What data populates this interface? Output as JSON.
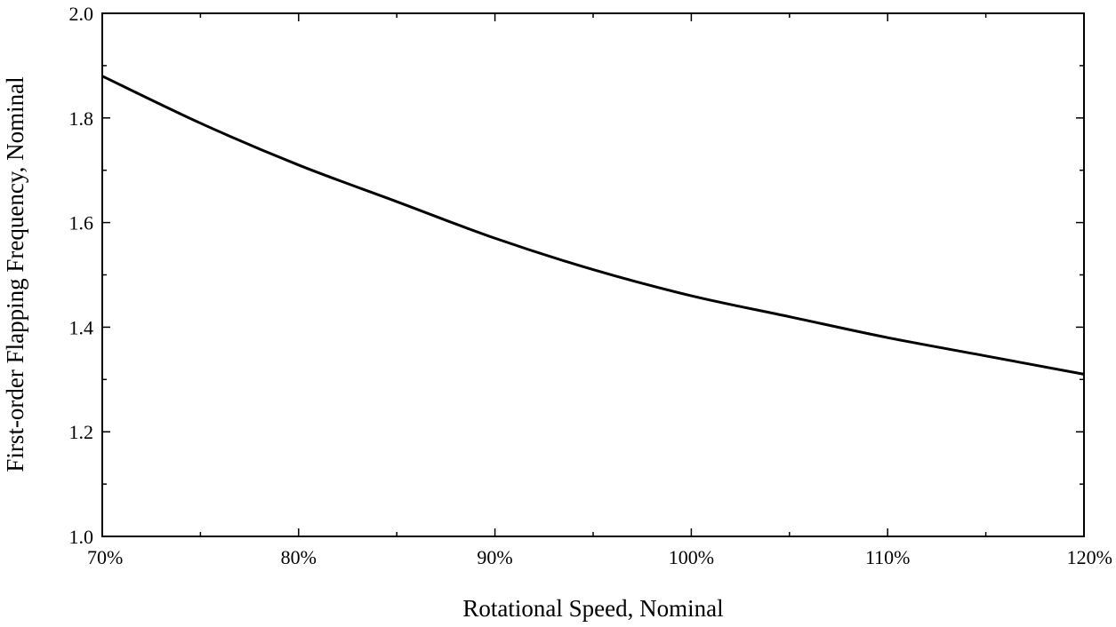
{
  "chart_data": {
    "type": "line",
    "title": "",
    "xlabel": "Rotational Speed, Nominal",
    "ylabel": "First-order Flapping Frequency, Nominal",
    "xlim": [
      0.7,
      1.2
    ],
    "ylim": [
      1.0,
      2.0
    ],
    "x_ticks": [
      0.7,
      0.8,
      0.9,
      1.0,
      1.1,
      1.2
    ],
    "x_tick_labels": [
      "70%",
      "80%",
      "90%",
      "100%",
      "110%",
      "120%"
    ],
    "y_ticks": [
      1.0,
      1.2,
      1.4,
      1.6,
      1.8,
      2.0
    ],
    "y_tick_labels": [
      "1.0",
      "1.2",
      "1.4",
      "1.6",
      "1.8",
      "2.0"
    ],
    "grid": false,
    "legend": "none",
    "line_color": "#000000",
    "series": [
      {
        "x": [
          0.7,
          0.75,
          0.8,
          0.85,
          0.9,
          0.95,
          1.0,
          1.05,
          1.1,
          1.15,
          1.2
        ],
        "values": [
          1.88,
          1.79,
          1.71,
          1.64,
          1.57,
          1.51,
          1.46,
          1.42,
          1.38,
          1.345,
          1.31
        ]
      }
    ]
  }
}
